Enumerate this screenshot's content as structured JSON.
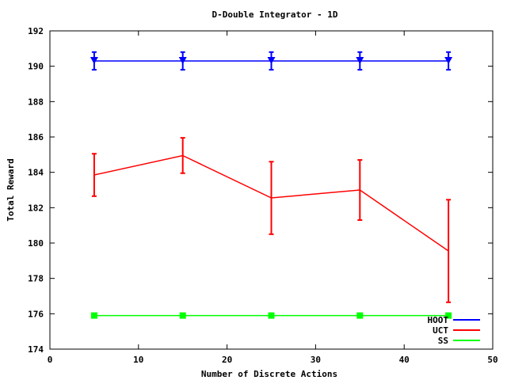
{
  "chart_data": {
    "type": "line",
    "title": "D-Double Integrator - 1D",
    "xlabel": "Number of Discrete Actions",
    "ylabel": "Total Reward",
    "xlim": [
      0,
      50
    ],
    "ylim": [
      174,
      192
    ],
    "xticks": [
      0,
      10,
      20,
      30,
      40,
      50
    ],
    "yticks": [
      174,
      176,
      178,
      180,
      182,
      184,
      186,
      188,
      190,
      192
    ],
    "grid": false,
    "legend_position": "bottom-right",
    "x": [
      5,
      15,
      25,
      35,
      45
    ],
    "series": [
      {
        "name": "HOOT",
        "color": "#0000ff",
        "marker": "triangle-down",
        "values": [
          190.3,
          190.3,
          190.3,
          190.3,
          190.3
        ],
        "error": [
          0.5,
          0.5,
          0.5,
          0.5,
          0.5
        ]
      },
      {
        "name": "UCT",
        "color": "#ff0000",
        "marker": "none",
        "values": [
          183.85,
          184.95,
          182.55,
          183.0,
          179.55
        ],
        "error": [
          1.2,
          1.0,
          2.05,
          1.7,
          2.9
        ]
      },
      {
        "name": "SS",
        "color": "#00ff00",
        "marker": "square",
        "values": [
          175.9,
          175.9,
          175.9,
          175.9,
          175.9
        ],
        "error": [
          0,
          0,
          0,
          0,
          0
        ]
      }
    ]
  }
}
